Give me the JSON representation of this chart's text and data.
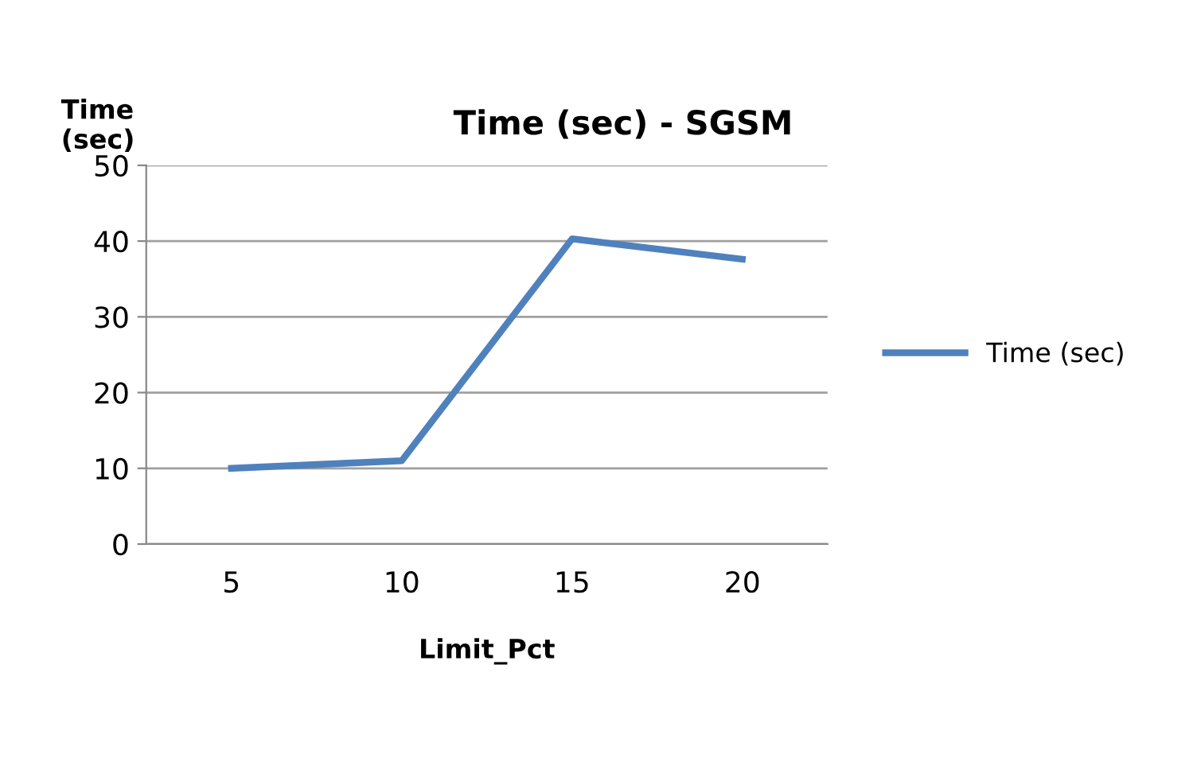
{
  "chart_data": {
    "type": "line",
    "title": "Time (sec) - SGSM",
    "xlabel": "Limit_Pct",
    "ylabel": "Time\n(sec)",
    "categories": [
      "5",
      "10",
      "15",
      "20"
    ],
    "series": [
      {
        "name": "Time (sec)",
        "color": "#4f81bd",
        "values": [
          10,
          11,
          40.3,
          37.6
        ]
      }
    ],
    "ylim": [
      0,
      50
    ],
    "yticks": [
      0,
      10,
      20,
      30,
      40,
      50
    ],
    "grid": "y",
    "legend": "right",
    "marker": "none",
    "line_style": "solid"
  }
}
